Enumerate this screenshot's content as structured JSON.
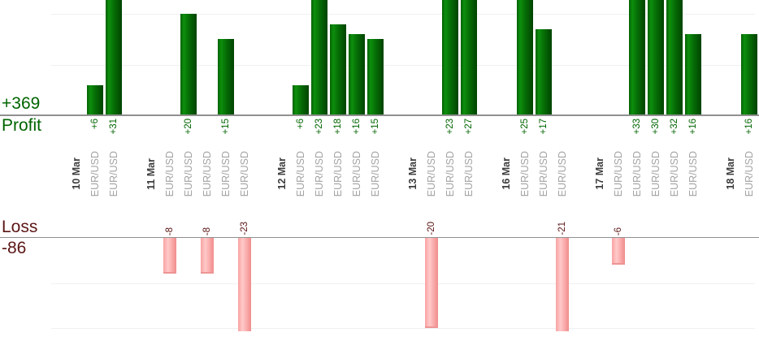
{
  "chart_data": {
    "type": "bar",
    "description": "Daily trade results split into profit (green, top) and loss (pink, bottom) bar charts",
    "profit_total_label": "+369",
    "profit_axis_label": "Profit",
    "loss_axis_label": "Loss",
    "loss_total_label": "-86",
    "profit_gridline_values": [
      10,
      20
    ],
    "loss_gridline_values": [
      10,
      20
    ],
    "profit_axis_visible_max": 22.7,
    "loss_axis_visible_max": 20.7,
    "legend_position": "none",
    "grid": true,
    "colors": {
      "profit_text": "#006400",
      "loss_text": "#5c1616",
      "profit_bar": "#066f06",
      "loss_bar": "#f8a3a3",
      "date_text": "#3d3d3d",
      "symbol_text": "#a3a3a3",
      "axis_line": "#909090",
      "gridline": "#f0f0f0"
    },
    "groups": [
      {
        "date": "10 Mar",
        "trades": [
          {
            "symbol": "EUR/USD",
            "value": 6,
            "label": "+6"
          },
          {
            "symbol": "EUR/USD",
            "value": 31,
            "label": "+31"
          }
        ]
      },
      {
        "date": "11 Mar",
        "trades": [
          {
            "symbol": "EUR/USD",
            "value": -8,
            "label": "-8"
          },
          {
            "symbol": "EUR/USD",
            "value": 20,
            "label": "+20"
          },
          {
            "symbol": "EUR/USD",
            "value": -8,
            "label": "-8"
          },
          {
            "symbol": "EUR/USD",
            "value": 15,
            "label": "+15"
          },
          {
            "symbol": "EUR/USD",
            "value": -23,
            "label": "-23"
          }
        ]
      },
      {
        "date": "12 Mar",
        "trades": [
          {
            "symbol": "EUR/USD",
            "value": 6,
            "label": "+6"
          },
          {
            "symbol": "EUR/USD",
            "value": 23,
            "label": "+23"
          },
          {
            "symbol": "EUR/USD",
            "value": 18,
            "label": "+18"
          },
          {
            "symbol": "EUR/USD",
            "value": 16,
            "label": "+16"
          },
          {
            "symbol": "EUR/USD",
            "value": 15,
            "label": "+15"
          }
        ]
      },
      {
        "date": "13 Mar",
        "trades": [
          {
            "symbol": "EUR/USD",
            "value": -20,
            "label": "-20"
          },
          {
            "symbol": "EUR/USD",
            "value": 23,
            "label": "+23"
          },
          {
            "symbol": "EUR/USD",
            "value": 27,
            "label": "+27"
          }
        ]
      },
      {
        "date": "16 Mar",
        "trades": [
          {
            "symbol": "EUR/USD",
            "value": 25,
            "label": "+25"
          },
          {
            "symbol": "EUR/USD",
            "value": 17,
            "label": "+17"
          },
          {
            "symbol": "EUR/USD",
            "value": -21,
            "label": "-21"
          }
        ]
      },
      {
        "date": "17 Mar",
        "trades": [
          {
            "symbol": "EUR/USD",
            "value": -6,
            "label": "-6"
          },
          {
            "symbol": "EUR/USD",
            "value": 33,
            "label": "+33"
          },
          {
            "symbol": "EUR/USD",
            "value": 30,
            "label": "+30"
          },
          {
            "symbol": "EUR/USD",
            "value": 32,
            "label": "+32"
          },
          {
            "symbol": "EUR/USD",
            "value": 16,
            "label": "+16"
          }
        ]
      },
      {
        "date": "18 Mar",
        "trades": [
          {
            "symbol": "EUR/USD",
            "value": 16,
            "label": "+16"
          }
        ]
      }
    ]
  }
}
